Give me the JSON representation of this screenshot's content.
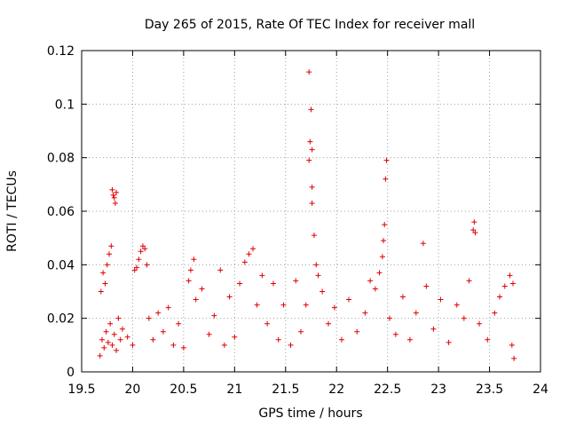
{
  "chart_data": {
    "type": "scatter",
    "title": "Day 265 of 2015, Rate Of TEC Index for receiver mall",
    "xlabel": "GPS time / hours",
    "ylabel": "ROTI / TECUs",
    "xlim": [
      19.5,
      24
    ],
    "ylim": [
      0,
      0.12
    ],
    "x_ticks": [
      19.5,
      20,
      20.5,
      21,
      21.5,
      22,
      22.5,
      23,
      23.5,
      24
    ],
    "x_tick_labels": [
      "19.5",
      "20",
      "20.5",
      "21",
      "21.5",
      "22",
      "22.5",
      "23",
      "23.5",
      "24"
    ],
    "y_ticks": [
      0,
      0.02,
      0.04,
      0.06,
      0.08,
      0.1,
      0.12
    ],
    "y_tick_labels": [
      "0",
      "0.02",
      "0.04",
      "0.06",
      "0.08",
      "0.1",
      "0.12"
    ],
    "grid": true,
    "marker": "+",
    "color": "#e00000",
    "series": [
      {
        "name": "ROTI",
        "points": [
          [
            19.68,
            0.006
          ],
          [
            19.7,
            0.012
          ],
          [
            19.72,
            0.009
          ],
          [
            19.74,
            0.015
          ],
          [
            19.76,
            0.011
          ],
          [
            19.78,
            0.018
          ],
          [
            19.8,
            0.01
          ],
          [
            19.82,
            0.014
          ],
          [
            19.84,
            0.008
          ],
          [
            19.86,
            0.02
          ],
          [
            19.88,
            0.012
          ],
          [
            19.9,
            0.016
          ],
          [
            19.69,
            0.03
          ],
          [
            19.71,
            0.037
          ],
          [
            19.73,
            0.033
          ],
          [
            19.75,
            0.04
          ],
          [
            19.77,
            0.044
          ],
          [
            19.79,
            0.047
          ],
          [
            19.8,
            0.068
          ],
          [
            19.81,
            0.066
          ],
          [
            19.83,
            0.063
          ],
          [
            19.84,
            0.067
          ],
          [
            19.82,
            0.065
          ],
          [
            19.95,
            0.013
          ],
          [
            20.0,
            0.01
          ],
          [
            20.02,
            0.038
          ],
          [
            20.04,
            0.039
          ],
          [
            20.06,
            0.042
          ],
          [
            20.08,
            0.045
          ],
          [
            20.1,
            0.047
          ],
          [
            20.12,
            0.046
          ],
          [
            20.14,
            0.04
          ],
          [
            20.16,
            0.02
          ],
          [
            20.2,
            0.012
          ],
          [
            20.25,
            0.022
          ],
          [
            20.3,
            0.015
          ],
          [
            20.35,
            0.024
          ],
          [
            20.4,
            0.01
          ],
          [
            20.45,
            0.018
          ],
          [
            20.5,
            0.009
          ],
          [
            20.55,
            0.034
          ],
          [
            20.57,
            0.038
          ],
          [
            20.6,
            0.042
          ],
          [
            20.62,
            0.027
          ],
          [
            20.68,
            0.031
          ],
          [
            20.75,
            0.014
          ],
          [
            20.8,
            0.021
          ],
          [
            20.86,
            0.038
          ],
          [
            20.9,
            0.01
          ],
          [
            20.95,
            0.028
          ],
          [
            21.0,
            0.013
          ],
          [
            21.05,
            0.033
          ],
          [
            21.1,
            0.041
          ],
          [
            21.14,
            0.044
          ],
          [
            21.18,
            0.046
          ],
          [
            21.22,
            0.025
          ],
          [
            21.27,
            0.036
          ],
          [
            21.32,
            0.018
          ],
          [
            21.38,
            0.033
          ],
          [
            21.43,
            0.012
          ],
          [
            21.48,
            0.025
          ],
          [
            21.55,
            0.01
          ],
          [
            21.6,
            0.034
          ],
          [
            21.65,
            0.015
          ],
          [
            21.7,
            0.025
          ],
          [
            21.73,
            0.112
          ],
          [
            21.75,
            0.098
          ],
          [
            21.74,
            0.086
          ],
          [
            21.76,
            0.083
          ],
          [
            21.73,
            0.079
          ],
          [
            21.76,
            0.069
          ],
          [
            21.76,
            0.063
          ],
          [
            21.78,
            0.051
          ],
          [
            21.8,
            0.04
          ],
          [
            21.82,
            0.036
          ],
          [
            21.86,
            0.03
          ],
          [
            21.92,
            0.018
          ],
          [
            21.98,
            0.024
          ],
          [
            22.05,
            0.012
          ],
          [
            22.12,
            0.027
          ],
          [
            22.2,
            0.015
          ],
          [
            22.28,
            0.022
          ],
          [
            22.33,
            0.034
          ],
          [
            22.38,
            0.031
          ],
          [
            22.42,
            0.037
          ],
          [
            22.45,
            0.043
          ],
          [
            22.46,
            0.049
          ],
          [
            22.47,
            0.055
          ],
          [
            22.48,
            0.072
          ],
          [
            22.49,
            0.079
          ],
          [
            22.52,
            0.02
          ],
          [
            22.58,
            0.014
          ],
          [
            22.65,
            0.028
          ],
          [
            22.72,
            0.012
          ],
          [
            22.78,
            0.022
          ],
          [
            22.85,
            0.048
          ],
          [
            22.88,
            0.032
          ],
          [
            22.95,
            0.016
          ],
          [
            23.02,
            0.027
          ],
          [
            23.1,
            0.011
          ],
          [
            23.18,
            0.025
          ],
          [
            23.25,
            0.02
          ],
          [
            23.3,
            0.034
          ],
          [
            23.34,
            0.053
          ],
          [
            23.35,
            0.056
          ],
          [
            23.36,
            0.052
          ],
          [
            23.4,
            0.018
          ],
          [
            23.48,
            0.012
          ],
          [
            23.55,
            0.022
          ],
          [
            23.6,
            0.028
          ],
          [
            23.65,
            0.032
          ],
          [
            23.7,
            0.036
          ],
          [
            23.72,
            0.01
          ],
          [
            23.73,
            0.033
          ],
          [
            23.74,
            0.005
          ]
        ]
      }
    ]
  }
}
